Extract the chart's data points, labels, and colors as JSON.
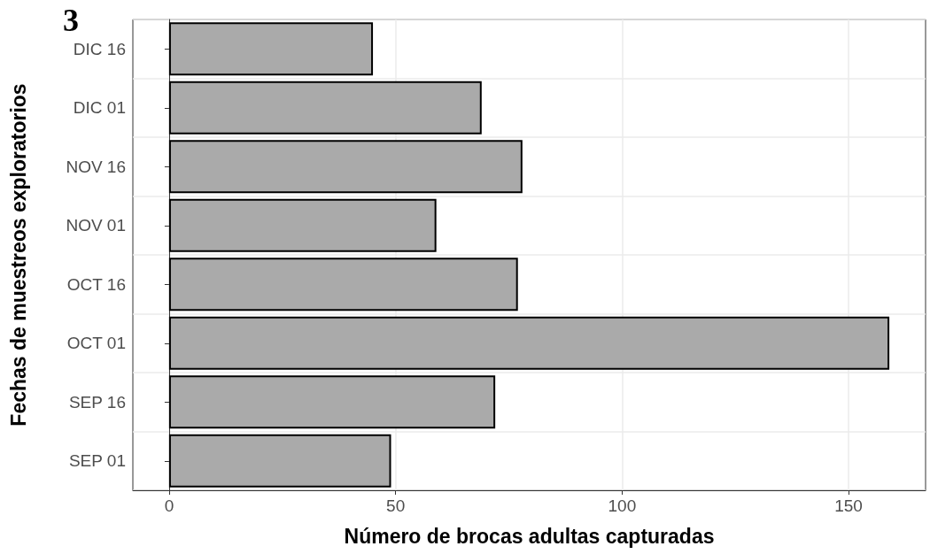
{
  "chart_data": {
    "type": "bar",
    "title": "3",
    "orientation": "horizontal",
    "xlabel": "Número de brocas adultas capturadas",
    "ylabel": "Fechas de muestreos exploratorios",
    "categories": [
      "DIC 16",
      "DIC 01",
      "NOV 16",
      "NOV 01",
      "OCT 16",
      "OCT 01",
      "SEP 16",
      "SEP 01"
    ],
    "values": [
      45,
      69,
      78,
      59,
      77,
      159,
      72,
      49
    ],
    "color": "#aaaaaa",
    "xlim": [
      -8,
      167
    ],
    "xticks": [
      0,
      50,
      100,
      150
    ],
    "grid": true
  }
}
